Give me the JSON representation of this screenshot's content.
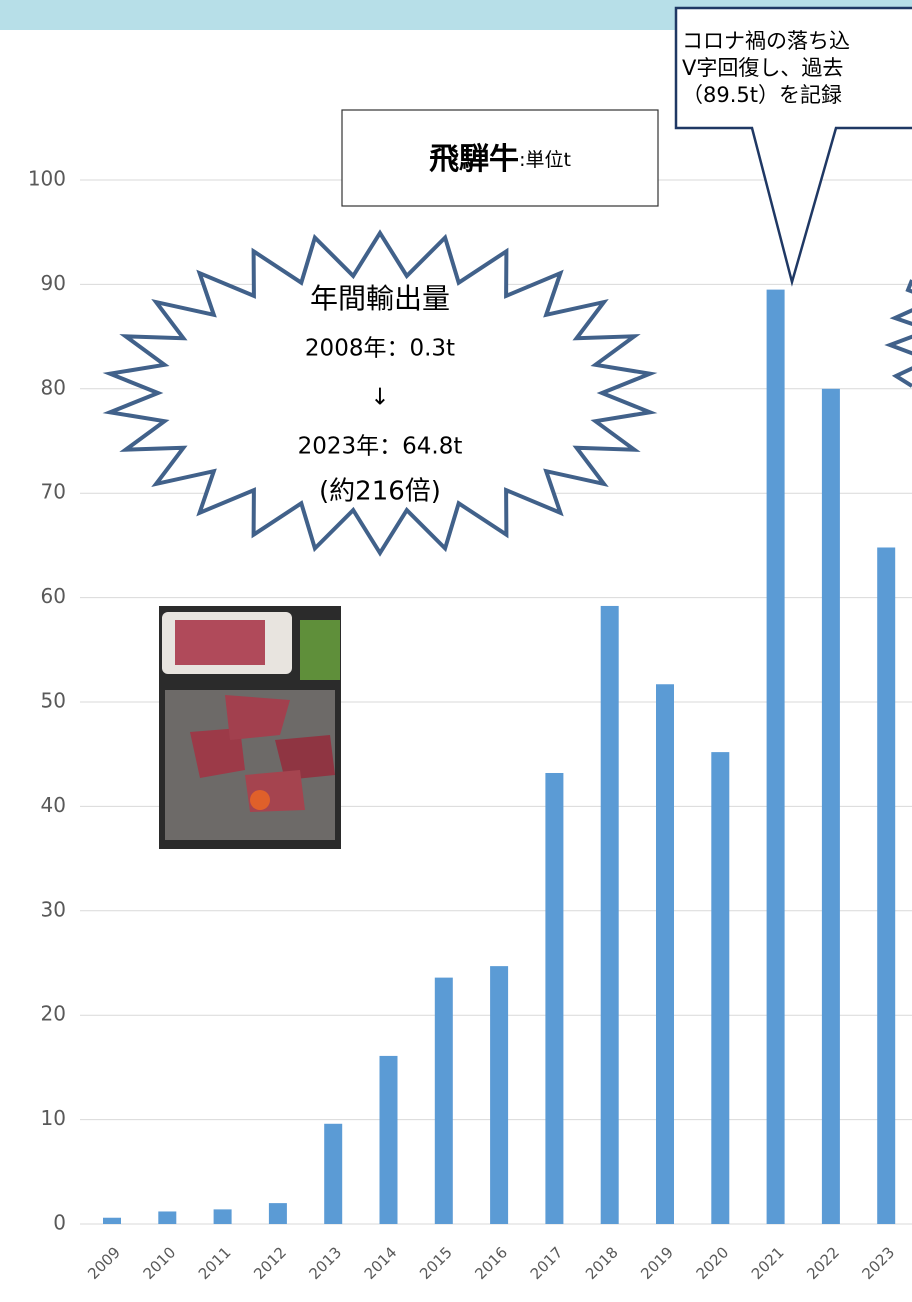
{
  "chart_data": {
    "type": "bar",
    "title": "飛騨牛",
    "title_unit": ":単位t",
    "categories": [
      "2009",
      "2010",
      "2011",
      "2012",
      "2013",
      "2014",
      "2015",
      "2016",
      "2017",
      "2018",
      "2019",
      "2020",
      "2021",
      "2022",
      "2023"
    ],
    "values": [
      0.6,
      1.2,
      1.4,
      2.0,
      9.6,
      16.1,
      23.6,
      24.7,
      43.2,
      59.2,
      51.7,
      45.2,
      89.5,
      80.0,
      64.8
    ],
    "color": "#5b9bd5",
    "ylim": [
      0,
      100
    ],
    "yticks": [
      0,
      10,
      20,
      30,
      40,
      50,
      60,
      70,
      80,
      90,
      100
    ],
    "grid": true,
    "burst_lines": [
      "年間輸出量",
      "2008年：0.3t",
      "↓",
      "2023年：64.8t",
      "(約216倍)"
    ],
    "callout_lines": [
      "コロナ禍の落ち込",
      "V字回復し、過去",
      "（89.5t）を記録"
    ]
  }
}
